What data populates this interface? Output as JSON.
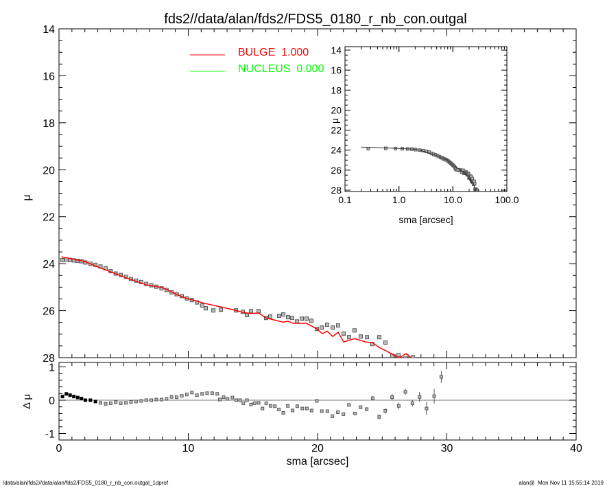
{
  "chart_data": {
    "type": "scatter",
    "title": "fds2//data/alan/fds2/FDS5_0180_r_nb_con.outgal",
    "footer_left": "/data/alan/fds2//data/alan/fds2/FDS5_0180_r_nb_con.outgal_1dprof",
    "footer_right": "alan@  Mon Nov 11 15:55:14 2019",
    "main": {
      "xlabel": "sma [arcsec]",
      "ylabel": "μ",
      "xlim": [
        0,
        40
      ],
      "ylim": [
        28,
        14
      ],
      "xticks": [
        "0",
        "10",
        "20",
        "30",
        "40"
      ],
      "yticks": [
        "14",
        "16",
        "18",
        "20",
        "22",
        "24",
        "26",
        "28"
      ],
      "legend": [
        {
          "label": "BULGE  1.000",
          "color": "#ff0000"
        },
        {
          "label": "NUCLEUS  0.000",
          "color": "#00ff00"
        }
      ],
      "observed": [
        [
          0.27,
          23.85
        ],
        [
          0.57,
          23.82
        ],
        [
          0.86,
          23.84
        ],
        [
          1.15,
          23.86
        ],
        [
          1.45,
          23.88
        ],
        [
          1.74,
          23.9
        ],
        [
          2.04,
          23.95
        ],
        [
          2.43,
          24.0
        ],
        [
          2.82,
          24.05
        ],
        [
          3.21,
          24.12
        ],
        [
          3.61,
          24.2
        ],
        [
          4.0,
          24.32
        ],
        [
          4.39,
          24.42
        ],
        [
          4.78,
          24.48
        ],
        [
          5.18,
          24.56
        ],
        [
          5.57,
          24.65
        ],
        [
          5.96,
          24.72
        ],
        [
          6.36,
          24.78
        ],
        [
          6.75,
          24.86
        ],
        [
          7.14,
          24.92
        ],
        [
          7.53,
          24.98
        ],
        [
          7.93,
          25.05
        ],
        [
          8.32,
          25.12
        ],
        [
          8.71,
          25.22
        ],
        [
          9.1,
          25.3
        ],
        [
          9.5,
          25.38
        ],
        [
          9.89,
          25.48
        ],
        [
          10.28,
          25.55
        ],
        [
          10.67,
          25.65
        ],
        [
          11.07,
          25.78
        ],
        [
          11.35,
          25.9
        ],
        [
          11.94,
          25.99
        ],
        [
          12.52,
          25.96
        ],
        [
          13.69,
          25.99
        ],
        [
          14.22,
          26.05
        ],
        [
          14.54,
          26.19
        ],
        [
          14.85,
          26.02
        ],
        [
          15.44,
          26.02
        ],
        [
          16.02,
          26.31
        ],
        [
          16.34,
          26.25
        ],
        [
          17.03,
          26.22
        ],
        [
          17.35,
          26.16
        ],
        [
          17.72,
          26.28
        ],
        [
          18.04,
          26.31
        ],
        [
          18.41,
          26.46
        ],
        [
          18.78,
          26.34
        ],
        [
          19.15,
          26.34
        ],
        [
          19.52,
          26.43
        ],
        [
          19.95,
          26.78
        ],
        [
          20.32,
          26.72
        ],
        [
          20.74,
          26.6
        ],
        [
          21.17,
          26.72
        ],
        [
          21.59,
          26.63
        ],
        [
          22.02,
          26.98
        ],
        [
          22.44,
          27.13
        ],
        [
          22.86,
          26.84
        ],
        [
          23.34,
          27.1
        ],
        [
          23.82,
          27.13
        ],
        [
          24.24,
          27.42
        ],
        [
          24.77,
          27.13
        ],
        [
          25.25,
          27.36
        ],
        [
          25.78,
          27.92
        ],
        [
          26.26,
          27.89
        ],
        [
          26.79,
          28.04
        ],
        [
          27.37,
          27.98
        ]
      ],
      "model_bulge": [
        [
          0.2,
          23.7
        ],
        [
          0.3,
          23.72
        ],
        [
          1.96,
          23.9
        ],
        [
          3.2,
          24.18
        ],
        [
          5.0,
          24.56
        ],
        [
          6.74,
          24.9
        ],
        [
          8.0,
          25.02
        ],
        [
          9.6,
          25.43
        ],
        [
          11.35,
          25.7
        ],
        [
          12.52,
          25.84
        ],
        [
          13.6,
          25.98
        ],
        [
          14.27,
          26.08
        ],
        [
          14.85,
          26.12
        ],
        [
          15.44,
          26.1
        ],
        [
          16.02,
          26.31
        ],
        [
          17.35,
          26.49
        ],
        [
          17.72,
          26.45
        ],
        [
          18.1,
          26.54
        ],
        [
          19.15,
          26.54
        ],
        [
          19.95,
          26.78
        ],
        [
          20.37,
          26.98
        ],
        [
          20.74,
          26.87
        ],
        [
          21.17,
          27.1
        ],
        [
          21.59,
          26.92
        ],
        [
          22.02,
          27.33
        ],
        [
          22.86,
          27.19
        ],
        [
          23.71,
          27.33
        ],
        [
          24.24,
          27.36
        ],
        [
          24.77,
          27.57
        ],
        [
          25.3,
          27.71
        ],
        [
          26.31,
          28.01
        ],
        [
          26.84,
          27.83
        ],
        [
          27.37,
          28.06
        ]
      ]
    },
    "residual": {
      "ylabel": "Δ μ",
      "ylim": [
        -1.1,
        1.1
      ],
      "yticks": [
        "1",
        "0",
        "-1"
      ],
      "points": [
        [
          0.27,
          0.11,
          0
        ],
        [
          0.57,
          0.19,
          0
        ],
        [
          0.86,
          0.15,
          0
        ],
        [
          1.15,
          0.11,
          0
        ],
        [
          1.45,
          0.08,
          0
        ],
        [
          1.74,
          0.05,
          0
        ],
        [
          2.04,
          0.0,
          0
        ],
        [
          2.43,
          0.0,
          0
        ],
        [
          2.82,
          -0.04,
          0
        ],
        [
          3.21,
          -0.08,
          0
        ],
        [
          3.61,
          -0.11,
          0
        ],
        [
          4.0,
          -0.09,
          0
        ],
        [
          4.39,
          -0.06,
          0
        ],
        [
          4.78,
          -0.09,
          0
        ],
        [
          5.18,
          -0.08,
          0
        ],
        [
          5.57,
          -0.05,
          0
        ],
        [
          5.96,
          -0.04,
          0
        ],
        [
          6.36,
          -0.02,
          0
        ],
        [
          6.75,
          0.0,
          0
        ],
        [
          7.14,
          0.0,
          0
        ],
        [
          7.53,
          0.02,
          0
        ],
        [
          7.93,
          0.02,
          0
        ],
        [
          8.32,
          0.04,
          0
        ],
        [
          8.71,
          0.1,
          0
        ],
        [
          9.1,
          0.09,
          0
        ],
        [
          9.5,
          0.13,
          0
        ],
        [
          9.89,
          0.17,
          0
        ],
        [
          10.28,
          0.23,
          0
        ],
        [
          10.67,
          0.15,
          0
        ],
        [
          11.07,
          0.19,
          0
        ],
        [
          11.46,
          0.21,
          0
        ],
        [
          11.85,
          0.21,
          0
        ],
        [
          12.24,
          0.19,
          0
        ],
        [
          12.44,
          0.02,
          0
        ],
        [
          12.73,
          0.09,
          0
        ],
        [
          13.03,
          0.04,
          0
        ],
        [
          13.42,
          0.08,
          0
        ],
        [
          13.72,
          0.0,
          0
        ],
        [
          14.01,
          0.0,
          0
        ],
        [
          14.26,
          -0.09,
          0
        ],
        [
          14.54,
          0.0,
          0
        ],
        [
          14.85,
          -0.13,
          0
        ],
        [
          15.13,
          -0.09,
          0
        ],
        [
          15.44,
          -0.08,
          0
        ],
        [
          15.74,
          -0.25,
          0
        ],
        [
          16.03,
          -0.09,
          0
        ],
        [
          16.37,
          -0.17,
          0
        ],
        [
          16.7,
          -0.18,
          0
        ],
        [
          17.01,
          -0.28,
          0
        ],
        [
          17.35,
          -0.38,
          0
        ],
        [
          17.7,
          -0.17,
          0
        ],
        [
          18.07,
          -0.31,
          0
        ],
        [
          18.43,
          -0.18,
          0
        ],
        [
          18.82,
          -0.25,
          0
        ],
        [
          19.17,
          -0.25,
          0
        ],
        [
          19.54,
          -0.31,
          0
        ],
        [
          19.94,
          -0.02,
          0.03
        ],
        [
          20.33,
          -0.33,
          0.03
        ],
        [
          20.76,
          -0.33,
          0.03
        ],
        [
          21.15,
          -0.48,
          0.04
        ],
        [
          21.57,
          -0.36,
          0.04
        ],
        [
          22.0,
          -0.42,
          0.04
        ],
        [
          22.43,
          -0.14,
          0.05
        ],
        [
          22.9,
          -0.4,
          0.05
        ],
        [
          23.33,
          -0.21,
          0.05
        ],
        [
          23.8,
          -0.27,
          0.06
        ],
        [
          24.27,
          0.06,
          0.06
        ],
        [
          24.77,
          -0.5,
          0.07
        ],
        [
          25.24,
          -0.32,
          0.08
        ],
        [
          25.77,
          0.09,
          0.1
        ],
        [
          26.28,
          -0.17,
          0.1
        ],
        [
          26.79,
          0.25,
          0.09
        ],
        [
          27.34,
          -0.09,
          0.1
        ],
        [
          27.89,
          0.1,
          0.15
        ],
        [
          28.43,
          -0.25,
          0.2
        ],
        [
          29.02,
          0.12,
          0.22
        ],
        [
          29.57,
          0.7,
          0.18
        ]
      ]
    },
    "inset": {
      "xlabel": "sma [arcsec]",
      "ylabel": "μ",
      "xscale": "log",
      "xlim": [
        0.1,
        100
      ],
      "ylim": [
        28,
        14
      ],
      "xticks": [
        "0.1",
        "1.0",
        "10.0",
        "100.0"
      ],
      "yticks": [
        "14",
        "16",
        "18",
        "20",
        "22",
        "24",
        "26",
        "28"
      ]
    }
  }
}
